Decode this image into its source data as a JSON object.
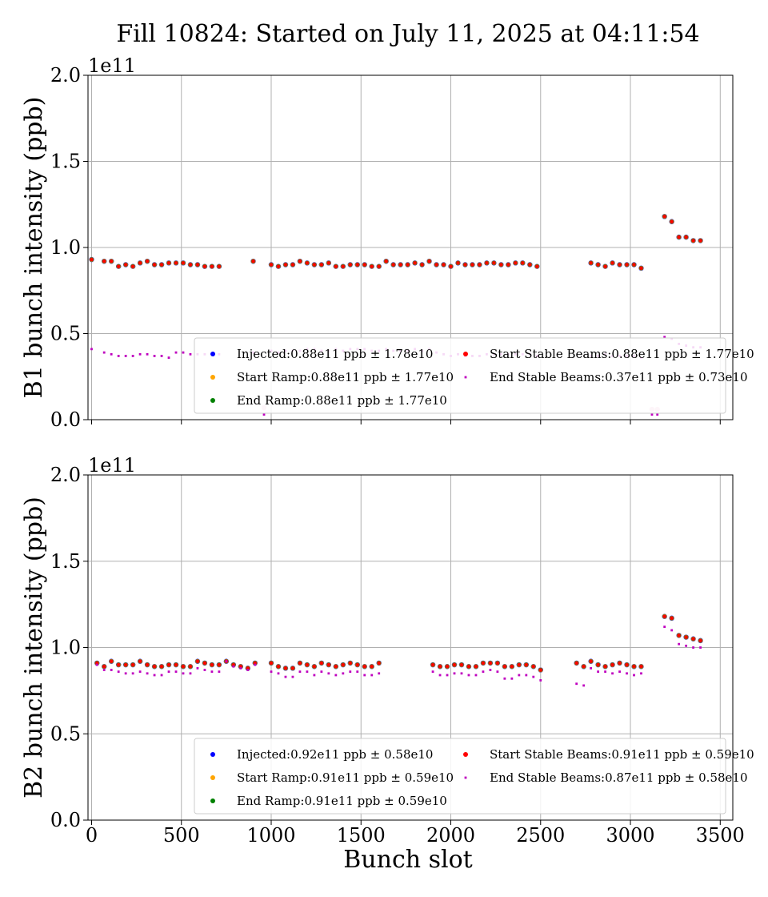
{
  "title": "Fill 10824: Started on July 11, 2025 at 04:11:54",
  "xlabel": "Bunch slot",
  "x_ticks": [
    "0",
    "500",
    "1000",
    "1500",
    "2000",
    "2500",
    "3000",
    "3500"
  ],
  "y_ticks": [
    "0.0",
    "0.5",
    "1.0",
    "1.5",
    "2.0"
  ],
  "y_exponent": "1e11",
  "colors": {
    "injected": "#0000ff",
    "start_ramp": "#ffa500",
    "end_ramp": "#008000",
    "start_stable": "#ff0000",
    "end_stable": "#bf00bf"
  },
  "chart_data": [
    {
      "type": "scatter",
      "ylabel": "B1 bunch intensity (ppb)",
      "xlim": [
        -20,
        3570
      ],
      "ylim": [
        0,
        2.0
      ],
      "grid": true,
      "legend_placement": "lower-right",
      "legend": [
        "Injected:0.88e11 ppb ± 1.78e10",
        "Start Ramp:0.88e11 ppb ± 1.77e10",
        "End Ramp:0.88e11 ppb ± 1.77e10",
        "Start Stable Beams:0.88e11 ppb ± 1.77e10",
        "End Stable Beams:0.37e11 ppb ± 0.73e10"
      ],
      "x": [
        0,
        70,
        110,
        150,
        190,
        230,
        270,
        310,
        350,
        390,
        430,
        470,
        510,
        550,
        590,
        630,
        670,
        710,
        900,
        960,
        1000,
        1040,
        1080,
        1120,
        1160,
        1200,
        1240,
        1280,
        1320,
        1360,
        1400,
        1440,
        1480,
        1520,
        1560,
        1600,
        1640,
        1680,
        1720,
        1760,
        1800,
        1840,
        1880,
        1920,
        1960,
        2000,
        2040,
        2080,
        2120,
        2160,
        2200,
        2240,
        2280,
        2320,
        2360,
        2400,
        2440,
        2480,
        2780,
        2820,
        2860,
        2900,
        2940,
        2980,
        3020,
        3060,
        3120,
        3150,
        3190,
        3230,
        3270,
        3310,
        3350,
        3390
      ],
      "intensity": [
        0.93,
        0.92,
        0.92,
        0.89,
        0.9,
        0.89,
        0.91,
        0.92,
        0.9,
        0.9,
        0.91,
        0.91,
        0.91,
        0.9,
        0.9,
        0.89,
        0.89,
        0.89,
        0.92,
        null,
        0.9,
        0.89,
        0.9,
        0.9,
        0.92,
        0.91,
        0.9,
        0.9,
        0.91,
        0.89,
        0.89,
        0.9,
        0.9,
        0.9,
        0.89,
        0.89,
        0.92,
        0.9,
        0.9,
        0.9,
        0.91,
        0.9,
        0.92,
        0.9,
        0.9,
        0.89,
        0.91,
        0.9,
        0.9,
        0.9,
        0.91,
        0.91,
        0.9,
        0.9,
        0.91,
        0.91,
        0.9,
        0.89,
        0.91,
        0.9,
        0.89,
        0.91,
        0.9,
        0.9,
        0.9,
        0.88,
        null,
        null,
        1.18,
        1.15,
        1.06,
        1.06,
        1.04,
        1.04
      ],
      "end_stable": [
        0.41,
        0.39,
        0.38,
        0.37,
        0.37,
        0.37,
        0.38,
        0.38,
        0.37,
        0.37,
        0.36,
        0.39,
        0.39,
        0.38,
        0.38,
        0.38,
        0.38,
        0.38,
        0.39,
        0.03,
        0.4,
        0.39,
        0.4,
        0.4,
        0.4,
        0.41,
        0.41,
        0.4,
        0.4,
        0.41,
        0.4,
        0.41,
        0.41,
        0.41,
        0.4,
        0.4,
        0.41,
        0.4,
        0.4,
        0.4,
        0.41,
        0.4,
        0.41,
        0.39,
        0.38,
        0.37,
        0.38,
        0.37,
        0.37,
        0.37,
        0.38,
        0.38,
        0.38,
        0.38,
        0.38,
        0.38,
        0.38,
        0.37,
        0.37,
        0.37,
        0.38,
        0.37,
        0.37,
        0.37,
        0.37,
        0.36,
        0.03,
        0.03,
        0.48,
        0.47,
        0.44,
        0.43,
        0.42,
        0.42
      ],
      "end_stable_light_points": [
        [
          960,
          0.07
        ],
        [
          3120,
          0.06
        ],
        [
          3150,
          0.06
        ]
      ]
    },
    {
      "type": "scatter",
      "ylabel": "B2 bunch intensity (ppb)",
      "xlim": [
        -20,
        3570
      ],
      "ylim": [
        0,
        2.0
      ],
      "grid": true,
      "legend_placement": "lower-right",
      "legend": [
        "Injected:0.92e11 ppb ± 0.58e10",
        "Start Ramp:0.91e11 ppb ± 0.59e10",
        "End Ramp:0.91e11 ppb ± 0.59e10",
        "Start Stable Beams:0.91e11 ppb ± 0.59e10",
        "End Stable Beams:0.87e11 ppb ± 0.58e10"
      ],
      "x": [
        30,
        70,
        110,
        150,
        190,
        230,
        270,
        310,
        350,
        390,
        430,
        470,
        510,
        550,
        590,
        630,
        670,
        710,
        750,
        790,
        830,
        870,
        910,
        1000,
        1040,
        1080,
        1120,
        1160,
        1200,
        1240,
        1280,
        1320,
        1360,
        1400,
        1440,
        1480,
        1520,
        1560,
        1600,
        1900,
        1940,
        1980,
        2020,
        2060,
        2100,
        2140,
        2180,
        2220,
        2260,
        2300,
        2340,
        2380,
        2420,
        2460,
        2500,
        2700,
        2740,
        2780,
        2820,
        2860,
        2900,
        2940,
        2980,
        3020,
        3060,
        3190,
        3230,
        3270,
        3310,
        3350,
        3390
      ],
      "intensity": [
        0.91,
        0.89,
        0.92,
        0.9,
        0.9,
        0.9,
        0.92,
        0.9,
        0.89,
        0.89,
        0.9,
        0.9,
        0.89,
        0.89,
        0.92,
        0.91,
        0.9,
        0.9,
        0.92,
        0.9,
        0.89,
        0.88,
        0.91,
        0.91,
        0.89,
        0.88,
        0.88,
        0.91,
        0.9,
        0.89,
        0.91,
        0.9,
        0.89,
        0.9,
        0.91,
        0.9,
        0.89,
        0.89,
        0.91,
        0.9,
        0.89,
        0.89,
        0.9,
        0.9,
        0.89,
        0.89,
        0.91,
        0.91,
        0.91,
        0.89,
        0.89,
        0.9,
        0.9,
        0.89,
        0.87,
        0.91,
        0.89,
        0.92,
        0.9,
        0.89,
        0.9,
        0.91,
        0.9,
        0.89,
        0.89,
        1.18,
        1.17,
        1.07,
        1.06,
        1.05,
        1.04
      ],
      "end_stable": [
        0.9,
        0.87,
        0.87,
        0.86,
        0.85,
        0.85,
        0.86,
        0.85,
        0.84,
        0.84,
        0.86,
        0.86,
        0.85,
        0.85,
        0.88,
        0.87,
        0.86,
        0.86,
        0.92,
        0.89,
        0.88,
        0.87,
        0.9,
        0.86,
        0.85,
        0.83,
        0.83,
        0.86,
        0.86,
        0.84,
        0.86,
        0.85,
        0.84,
        0.85,
        0.86,
        0.86,
        0.84,
        0.84,
        0.85,
        0.86,
        0.84,
        0.84,
        0.85,
        0.85,
        0.84,
        0.84,
        0.86,
        0.87,
        0.86,
        0.82,
        0.82,
        0.84,
        0.84,
        0.83,
        0.81,
        0.79,
        0.78,
        0.88,
        0.86,
        0.86,
        0.85,
        0.86,
        0.85,
        0.84,
        0.85,
        1.12,
        1.1,
        1.02,
        1.01,
        1.0,
        1.0
      ]
    }
  ]
}
